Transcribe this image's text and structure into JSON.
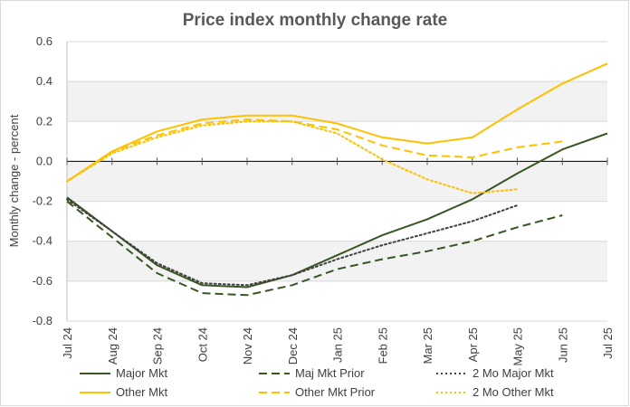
{
  "chart_data": {
    "type": "line",
    "title": "Price index monthly change rate",
    "xlabel": "",
    "ylabel": "Monthly change - percent",
    "ylim": [
      -0.8,
      0.6
    ],
    "yticks": [
      -0.8,
      -0.6,
      -0.4,
      -0.2,
      0.0,
      0.2,
      0.4,
      0.6
    ],
    "ytick_labels": [
      "-0.8",
      "-0.6",
      "-0.4",
      "-0.2",
      "0.0",
      "0.2",
      "0.4",
      "0.6"
    ],
    "categories": [
      "Jul 24",
      "Aug 24",
      "Sep 24",
      "Oct 24",
      "Nov 24",
      "Dec 24",
      "Jan 25",
      "Feb 25",
      "Mar 25",
      "Apr 25",
      "May 25",
      "Jun 25",
      "Jul 25"
    ],
    "series": [
      {
        "name": "Major Mkt",
        "color": "#375623",
        "dash": "solid",
        "values": [
          -0.18,
          -0.35,
          -0.52,
          -0.62,
          -0.63,
          -0.57,
          -0.47,
          -0.37,
          -0.29,
          -0.19,
          -0.06,
          0.06,
          0.14
        ]
      },
      {
        "name": "Maj Mkt Prior",
        "color": "#375623",
        "dash": "dashed",
        "values": [
          -0.2,
          -0.38,
          -0.56,
          -0.66,
          -0.67,
          -0.62,
          -0.54,
          -0.49,
          -0.45,
          -0.4,
          -0.33,
          -0.27,
          null
        ]
      },
      {
        "name": "2 Mo Major Mkt",
        "color": "#404040",
        "dash": "dotted",
        "values": [
          -0.19,
          -0.35,
          -0.51,
          -0.61,
          -0.62,
          -0.57,
          -0.49,
          -0.42,
          -0.36,
          -0.3,
          -0.22,
          null,
          null
        ]
      },
      {
        "name": "Other Mkt",
        "color": "#FFC000",
        "dash": "solid",
        "values": [
          -0.1,
          0.05,
          0.15,
          0.21,
          0.23,
          0.23,
          0.19,
          0.12,
          0.09,
          0.12,
          0.26,
          0.39,
          0.49
        ]
      },
      {
        "name": "Other Mkt Prior",
        "color": "#FFC000",
        "dash": "dashed",
        "values": [
          -0.1,
          0.05,
          0.13,
          0.19,
          0.21,
          0.2,
          0.16,
          0.08,
          0.03,
          0.02,
          0.07,
          0.1,
          null
        ]
      },
      {
        "name": "2 Mo Other Mkt",
        "color": "#FFC000",
        "dash": "dotted",
        "values": [
          -0.1,
          0.04,
          0.12,
          0.18,
          0.2,
          0.2,
          0.14,
          0.01,
          -0.09,
          -0.16,
          -0.14,
          null,
          null
        ]
      }
    ],
    "grid": true,
    "legend_position": "bottom"
  }
}
